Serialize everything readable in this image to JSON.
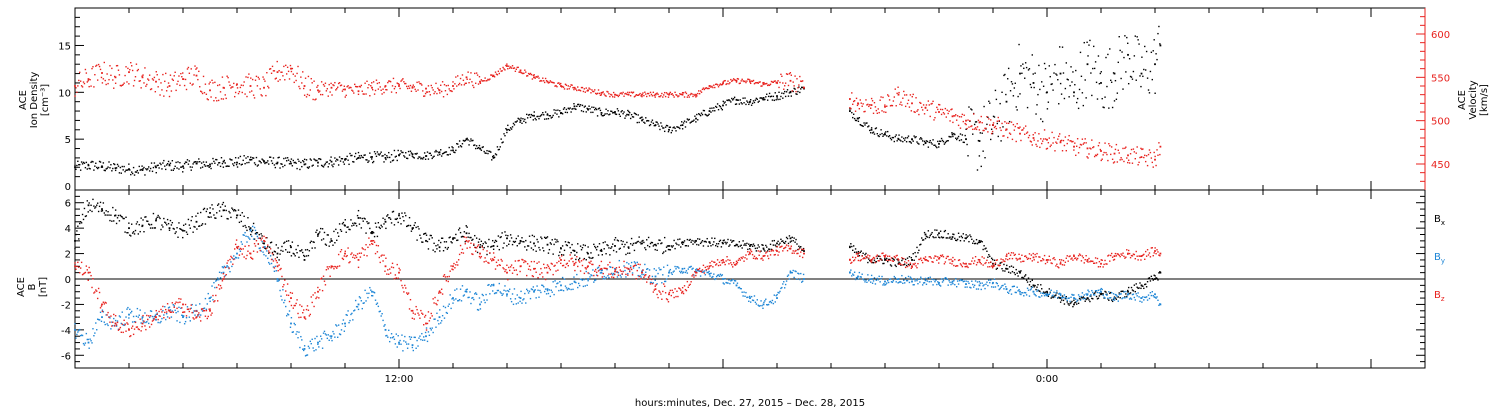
{
  "colors": {
    "black": "#000000",
    "red": "#e8221e",
    "blue": "#1e86d6"
  },
  "footer": {
    "xlabel": "hours:minutes, Dec. 27, 2015 – Dec. 28, 2015"
  },
  "x_axis": {
    "tick_labels": [
      "12:00",
      "0:00"
    ],
    "range_hours": [
      0,
      50
    ]
  },
  "chart_data": [
    {
      "type": "scatter",
      "panel": "top",
      "ylabel_left": [
        "ACE",
        "Ion Density",
        "[cm⁻³]"
      ],
      "ylabel_right": [
        "ACE",
        "Velocity",
        "[km/s]"
      ],
      "y_left_range": [
        0,
        19
      ],
      "y_left_ticks": [
        0,
        5,
        10,
        15
      ],
      "y_right_range": [
        420,
        630
      ],
      "y_right_ticks": [
        450,
        500,
        550,
        600
      ],
      "data_gap_hours": [
        27.0,
        28.7
      ],
      "data_end_hours": 40.2,
      "series": [
        {
          "label": "ion_density",
          "axis": "left",
          "color": "black",
          "x": [
            0,
            0.5,
            1,
            1.5,
            2,
            2.5,
            3,
            3.5,
            4,
            4.5,
            5,
            5.5,
            6,
            6.5,
            7,
            7.5,
            8,
            8.5,
            9,
            9.5,
            10,
            10.5,
            11,
            11.5,
            12,
            12.5,
            13,
            13.5,
            14,
            14.5,
            15,
            15.5,
            16,
            16.5,
            17,
            17.5,
            18,
            18.5,
            19,
            19.5,
            20,
            20.5,
            21,
            21.5,
            22,
            22.5,
            23,
            23.5,
            24,
            24.5,
            25,
            25.5,
            26,
            26.5,
            27,
            28.7,
            29,
            29.5,
            30,
            30.5,
            31,
            31.5,
            32,
            32.5,
            33,
            33.5,
            34,
            34.5,
            35,
            35.5,
            36,
            36.5,
            37,
            37.5,
            38,
            38.5,
            39,
            39.5,
            40,
            40.2
          ],
          "y": [
            2.0,
            2.2,
            2.1,
            1.9,
            1.8,
            1.7,
            2.0,
            2.2,
            2.1,
            2.4,
            2.3,
            2.6,
            2.5,
            2.8,
            2.6,
            2.5,
            2.4,
            2.3,
            2.5,
            2.6,
            2.8,
            3.0,
            3.1,
            3.0,
            3.3,
            3.4,
            3.2,
            3.6,
            3.8,
            5.0,
            4.0,
            3.0,
            6.0,
            7.0,
            7.5,
            7.6,
            7.8,
            8.5,
            8.2,
            7.8,
            7.9,
            7.6,
            7.0,
            6.5,
            6.0,
            6.5,
            7.2,
            8.0,
            8.6,
            9.2,
            9.0,
            9.4,
            9.6,
            10.0,
            10.4,
            8.0,
            7.2,
            6.0,
            5.5,
            5.0,
            5.0,
            4.6,
            4.5,
            5.5,
            5.0,
            4.8,
            6.5,
            9.0,
            12.0,
            11.0,
            10.0,
            12.0,
            10.0,
            13.0,
            11.0,
            12.0,
            14.0,
            12.0,
            13.0,
            15.0
          ]
        },
        {
          "label": "velocity",
          "axis": "right",
          "color": "red",
          "x": [
            0,
            0.5,
            1,
            1.5,
            2,
            2.5,
            3,
            3.5,
            4,
            4.5,
            5,
            5.5,
            6,
            6.5,
            7,
            7.5,
            8,
            8.5,
            9,
            9.5,
            10,
            10.5,
            11,
            11.5,
            12,
            12.5,
            13,
            13.5,
            14,
            14.5,
            15,
            15.5,
            16,
            16.5,
            17,
            17.5,
            18,
            18.5,
            19,
            19.5,
            20,
            20.5,
            21,
            21.5,
            22,
            22.5,
            23,
            23.5,
            24,
            24.5,
            25,
            25.5,
            26,
            26.5,
            27,
            28.7,
            29,
            29.5,
            30,
            30.5,
            31,
            31.5,
            32,
            32.5,
            33,
            33.5,
            34,
            34.5,
            35,
            35.5,
            36,
            36.5,
            37,
            37.5,
            38,
            38.5,
            39,
            39.5,
            40,
            40.2
          ],
          "y": [
            540,
            548,
            555,
            550,
            556,
            550,
            545,
            540,
            548,
            552,
            535,
            538,
            542,
            540,
            538,
            556,
            560,
            540,
            535,
            538,
            536,
            534,
            538,
            540,
            540,
            538,
            537,
            535,
            540,
            550,
            545,
            552,
            563,
            558,
            550,
            545,
            540,
            538,
            535,
            532,
            530,
            530,
            530,
            530,
            530,
            530,
            530,
            540,
            543,
            546,
            545,
            542,
            544,
            546,
            538,
            525,
            520,
            518,
            516,
            530,
            520,
            515,
            510,
            505,
            500,
            498,
            495,
            490,
            485,
            480,
            478,
            475,
            470,
            468,
            465,
            462,
            460,
            458,
            455,
            470
          ]
        }
      ]
    },
    {
      "type": "scatter",
      "panel": "bottom",
      "ylabel_left": [
        "ACE",
        "B",
        "[nT]"
      ],
      "y_range": [
        -7,
        7
      ],
      "y_ticks": [
        -6,
        -4,
        -2,
        0,
        2,
        4,
        6
      ],
      "zero_line": true,
      "data_gap_hours": [
        27.0,
        28.7
      ],
      "data_end_hours": 40.2,
      "series": [
        {
          "name": "Bx",
          "color": "black",
          "x": [
            0,
            0.5,
            1,
            1.5,
            2,
            2.5,
            3,
            3.5,
            4,
            4.5,
            5,
            5.5,
            6,
            6.5,
            7,
            7.5,
            8,
            8.5,
            9,
            9.5,
            10,
            10.5,
            11,
            11.5,
            12,
            12.5,
            13,
            13.5,
            14,
            14.5,
            15,
            15.5,
            16,
            16.5,
            17,
            17.5,
            18,
            18.5,
            19,
            19.5,
            20,
            20.5,
            21,
            21.5,
            22,
            22.5,
            23,
            23.5,
            24,
            24.5,
            25,
            25.5,
            26,
            26.5,
            27,
            28.7,
            29,
            29.5,
            30,
            30.5,
            31,
            31.5,
            32,
            32.5,
            33,
            33.5,
            34,
            34.5,
            35,
            35.5,
            36,
            36.5,
            37,
            37.5,
            38,
            38.5,
            39,
            39.5,
            40,
            40.2
          ],
          "y": [
            3.0,
            5.8,
            5.5,
            5.0,
            4.0,
            4.2,
            4.6,
            4.0,
            3.8,
            4.5,
            5.2,
            5.4,
            5.0,
            4.0,
            2.8,
            2.0,
            2.5,
            1.5,
            3.5,
            3.0,
            4.2,
            4.8,
            3.6,
            4.5,
            5.0,
            4.0,
            3.0,
            2.5,
            3.2,
            3.6,
            2.5,
            2.6,
            3.2,
            3.0,
            2.8,
            2.7,
            2.4,
            2.2,
            2.0,
            2.2,
            2.6,
            2.5,
            2.8,
            2.7,
            2.6,
            2.9,
            3.0,
            2.9,
            2.8,
            2.7,
            2.6,
            2.4,
            2.8,
            3.2,
            2.2,
            2.5,
            2.0,
            1.5,
            1.5,
            1.2,
            1.5,
            3.5,
            3.6,
            3.3,
            3.2,
            3.0,
            1.2,
            0.8,
            0.5,
            -0.5,
            -1.0,
            -1.5,
            -2.0,
            -1.5,
            -1.2,
            -1.5,
            -1.0,
            -0.5,
            0.0,
            0.5
          ]
        },
        {
          "name": "By",
          "color": "blue",
          "x": [
            0,
            0.5,
            1,
            1.5,
            2,
            2.5,
            3,
            3.5,
            4,
            4.5,
            5,
            5.5,
            6,
            6.5,
            7,
            7.5,
            8,
            8.5,
            9,
            9.5,
            10,
            10.5,
            11,
            11.5,
            12,
            12.5,
            13,
            13.5,
            14,
            14.5,
            15,
            15.5,
            16,
            16.5,
            17,
            17.5,
            18,
            18.5,
            19,
            19.5,
            20,
            20.5,
            21,
            21.5,
            22,
            22.5,
            23,
            23.5,
            24,
            24.5,
            25,
            25.5,
            26,
            26.5,
            27,
            28.7,
            29,
            29.5,
            30,
            30.5,
            31,
            31.5,
            32,
            32.5,
            33,
            33.5,
            34,
            34.5,
            35,
            35.5,
            36,
            36.5,
            37,
            37.5,
            38,
            38.5,
            39,
            39.5,
            40,
            40.2
          ],
          "y": [
            -4.0,
            -5.0,
            -3.0,
            -3.5,
            -2.8,
            -3.0,
            -3.2,
            -2.5,
            -3.0,
            -2.5,
            -1.5,
            0.5,
            2.0,
            3.8,
            2.5,
            0.0,
            -3.5,
            -5.5,
            -5.0,
            -4.5,
            -3.5,
            -2.0,
            -1.0,
            -4.0,
            -5.0,
            -5.2,
            -4.5,
            -3.0,
            -1.5,
            -1.0,
            -2.0,
            -0.5,
            -1.2,
            -1.5,
            -1.0,
            -0.8,
            -0.5,
            -0.2,
            0.0,
            0.5,
            0.8,
            0.8,
            0.6,
            0.2,
            0.5,
            0.8,
            0.6,
            0.4,
            0.0,
            -0.5,
            -1.5,
            -2.0,
            -1.5,
            0.5,
            0.0,
            0.5,
            0.2,
            0.0,
            -0.2,
            0.0,
            -0.2,
            -0.1,
            -0.3,
            -0.2,
            -0.4,
            -0.5,
            -0.3,
            -0.8,
            -1.0,
            -1.0,
            -1.2,
            -1.2,
            -1.5,
            -1.2,
            -1.0,
            -1.5,
            -1.2,
            -1.5,
            -1.2,
            -2.0
          ]
        },
        {
          "name": "Bz",
          "color": "red",
          "x": [
            0,
            0.5,
            1,
            1.5,
            2,
            2.5,
            3,
            3.5,
            4,
            4.5,
            5,
            5.5,
            6,
            6.5,
            7,
            7.5,
            8,
            8.5,
            9,
            9.5,
            10,
            10.5,
            11,
            11.5,
            12,
            12.5,
            13,
            13.5,
            14,
            14.5,
            15,
            15.5,
            16,
            16.5,
            17,
            17.5,
            18,
            18.5,
            19,
            19.5,
            20,
            20.5,
            21,
            21.5,
            22,
            22.5,
            23,
            23.5,
            24,
            24.5,
            25,
            25.5,
            26,
            26.5,
            27,
            28.7,
            29,
            29.5,
            30,
            30.5,
            31,
            31.5,
            32,
            32.5,
            33,
            33.5,
            34,
            34.5,
            35,
            35.5,
            36,
            36.5,
            37,
            37.5,
            38,
            38.5,
            39,
            39.5,
            40,
            40.2
          ],
          "y": [
            1.0,
            0.5,
            -2.0,
            -3.5,
            -4.0,
            -3.5,
            -3.0,
            -2.5,
            -2.0,
            -3.0,
            -2.5,
            0.0,
            2.5,
            2.0,
            3.0,
            1.0,
            -1.5,
            -3.0,
            -1.0,
            1.0,
            2.0,
            1.5,
            3.0,
            1.0,
            0.5,
            -2.5,
            -3.5,
            -1.0,
            1.0,
            3.0,
            2.0,
            1.5,
            0.5,
            1.0,
            0.8,
            0.5,
            1.5,
            1.2,
            1.0,
            0.8,
            0.6,
            0.8,
            0.5,
            -0.8,
            -1.2,
            -1.0,
            0.5,
            1.0,
            1.5,
            1.2,
            2.0,
            1.8,
            2.2,
            2.4,
            2.0,
            1.5,
            1.8,
            1.5,
            1.8,
            1.5,
            1.0,
            1.5,
            1.6,
            1.4,
            1.2,
            1.5,
            1.0,
            1.8,
            1.6,
            1.7,
            1.5,
            1.2,
            1.8,
            1.5,
            1.2,
            1.8,
            2.0,
            1.8,
            2.2,
            2.0
          ]
        }
      ]
    }
  ]
}
